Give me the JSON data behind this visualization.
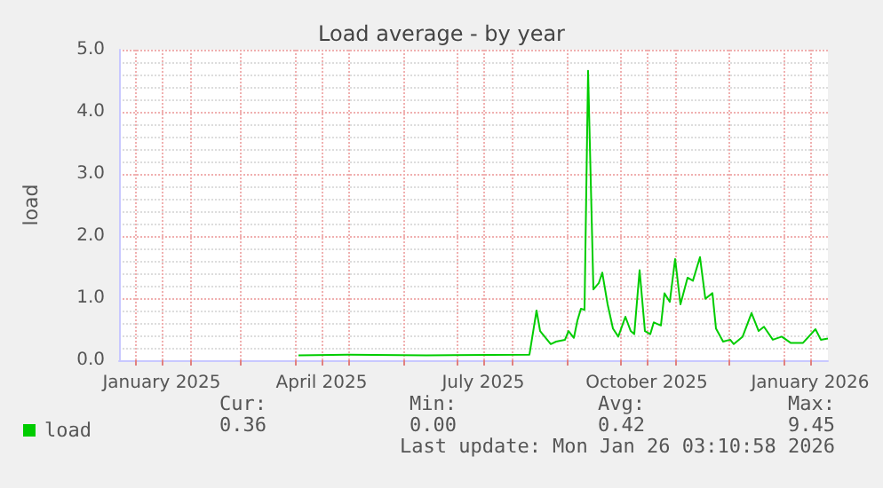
{
  "chart_data": {
    "type": "line",
    "title": "Load average - by year",
    "ylabel": "load",
    "x": [
      "2025-04-03",
      "2025-05-01",
      "2025-06-14",
      "2025-08-11",
      "2025-08-15",
      "2025-08-17",
      "2025-08-23",
      "2025-08-26",
      "2025-08-31",
      "2025-09-02",
      "2025-09-05",
      "2025-09-07",
      "2025-09-09",
      "2025-09-11",
      "2025-09-13",
      "2025-09-16",
      "2025-09-19",
      "2025-09-21",
      "2025-09-24",
      "2025-09-27",
      "2025-09-30",
      "2025-10-04",
      "2025-10-07",
      "2025-10-09",
      "2025-10-12",
      "2025-10-15",
      "2025-10-18",
      "2025-10-20",
      "2025-10-24",
      "2025-10-26",
      "2025-10-29",
      "2025-11-01",
      "2025-11-04",
      "2025-11-08",
      "2025-11-11",
      "2025-11-15",
      "2025-11-18",
      "2025-11-22",
      "2025-11-24",
      "2025-11-28",
      "2025-12-02",
      "2025-12-04",
      "2025-12-09",
      "2025-12-14",
      "2025-12-18",
      "2025-12-21",
      "2025-12-26",
      "2025-12-31",
      "2026-01-05",
      "2026-01-12",
      "2026-01-19",
      "2026-01-22",
      "2026-01-26"
    ],
    "series": [
      {
        "name": "load",
        "color": "#00cc00",
        "values": [
          0.08,
          0.09,
          0.08,
          0.09,
          0.8,
          0.47,
          0.26,
          0.3,
          0.33,
          0.47,
          0.36,
          0.64,
          0.83,
          0.81,
          4.66,
          1.14,
          1.24,
          1.41,
          0.9,
          0.51,
          0.38,
          0.7,
          0.47,
          0.42,
          1.45,
          0.47,
          0.42,
          0.61,
          0.56,
          1.08,
          0.94,
          1.63,
          0.9,
          1.33,
          1.28,
          1.66,
          0.99,
          1.08,
          0.51,
          0.3,
          0.33,
          0.26,
          0.38,
          0.76,
          0.47,
          0.54,
          0.33,
          0.38,
          0.28,
          0.28,
          0.5,
          0.33,
          0.35
        ]
      }
    ],
    "xlim": [
      "2024-12-23",
      "2026-01-26"
    ],
    "xticks": [
      {
        "value": "2025-01-01",
        "label": null
      },
      {
        "value": "2025-01-16",
        "label": "January 2025"
      },
      {
        "value": "2025-02-01",
        "label": null
      },
      {
        "value": "2025-03-01",
        "label": null
      },
      {
        "value": "2025-04-01",
        "label": null
      },
      {
        "value": "2025-04-16",
        "label": "April 2025"
      },
      {
        "value": "2025-05-01",
        "label": null
      },
      {
        "value": "2025-06-01",
        "label": null
      },
      {
        "value": "2025-07-01",
        "label": null
      },
      {
        "value": "2025-07-16",
        "label": "July 2025"
      },
      {
        "value": "2025-08-01",
        "label": null
      },
      {
        "value": "2025-09-01",
        "label": null
      },
      {
        "value": "2025-10-01",
        "label": null
      },
      {
        "value": "2025-10-16",
        "label": "October 2025"
      },
      {
        "value": "2025-11-01",
        "label": null
      },
      {
        "value": "2025-12-01",
        "label": null
      },
      {
        "value": "2026-01-01",
        "label": null
      },
      {
        "value": "2026-01-16",
        "label": "January 2026"
      }
    ],
    "ylim": [
      0,
      5
    ],
    "yticks": [
      {
        "value": 0,
        "label": "0.0"
      },
      {
        "value": 1,
        "label": "1.0"
      },
      {
        "value": 2,
        "label": "2.0"
      },
      {
        "value": 3,
        "label": "3.0"
      },
      {
        "value": 4,
        "label": "4.0"
      },
      {
        "value": 5,
        "label": "5.0"
      }
    ],
    "grid": true,
    "legend": "bottom left",
    "marker": "none",
    "line_style": "solid",
    "annotations": [
      "Cur:",
      "Min:",
      "Avg:",
      "Max:",
      "0.36",
      "0.00",
      "0.42",
      "9.45",
      "Last update: Mon Jan 26 03:10:58 2026"
    ]
  }
}
